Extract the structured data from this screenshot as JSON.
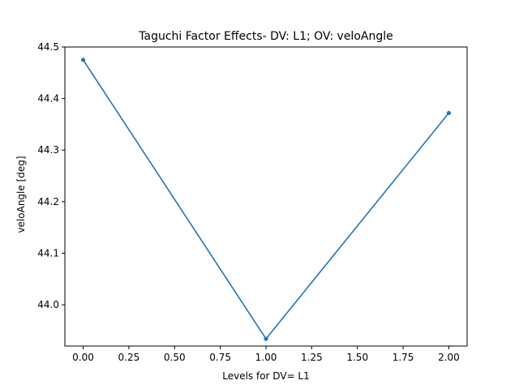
{
  "chart_data": {
    "type": "line",
    "title": "Taguchi Factor Effects- DV: L1; OV: veloAngle",
    "xlabel": "Levels for DV= L1",
    "ylabel": "veloAngle [deg]",
    "xlim": [
      -0.1,
      2.1
    ],
    "ylim": [
      43.92,
      44.5
    ],
    "x_ticks": [
      0.0,
      0.25,
      0.5,
      0.75,
      1.0,
      1.25,
      1.5,
      1.75,
      2.0
    ],
    "x_tick_labels": [
      "0.00",
      "0.25",
      "0.50",
      "0.75",
      "1.00",
      "1.25",
      "1.50",
      "1.75",
      "2.00"
    ],
    "y_ticks": [
      44.0,
      44.1,
      44.2,
      44.3,
      44.4,
      44.5
    ],
    "y_tick_labels": [
      "44.0",
      "44.1",
      "44.2",
      "44.3",
      "44.4",
      "44.5"
    ],
    "grid": false,
    "legend": "none",
    "series": [
      {
        "color": "#1f77b4",
        "x": [
          0,
          1,
          2
        ],
        "y": [
          44.475,
          43.934,
          44.372
        ]
      }
    ]
  }
}
